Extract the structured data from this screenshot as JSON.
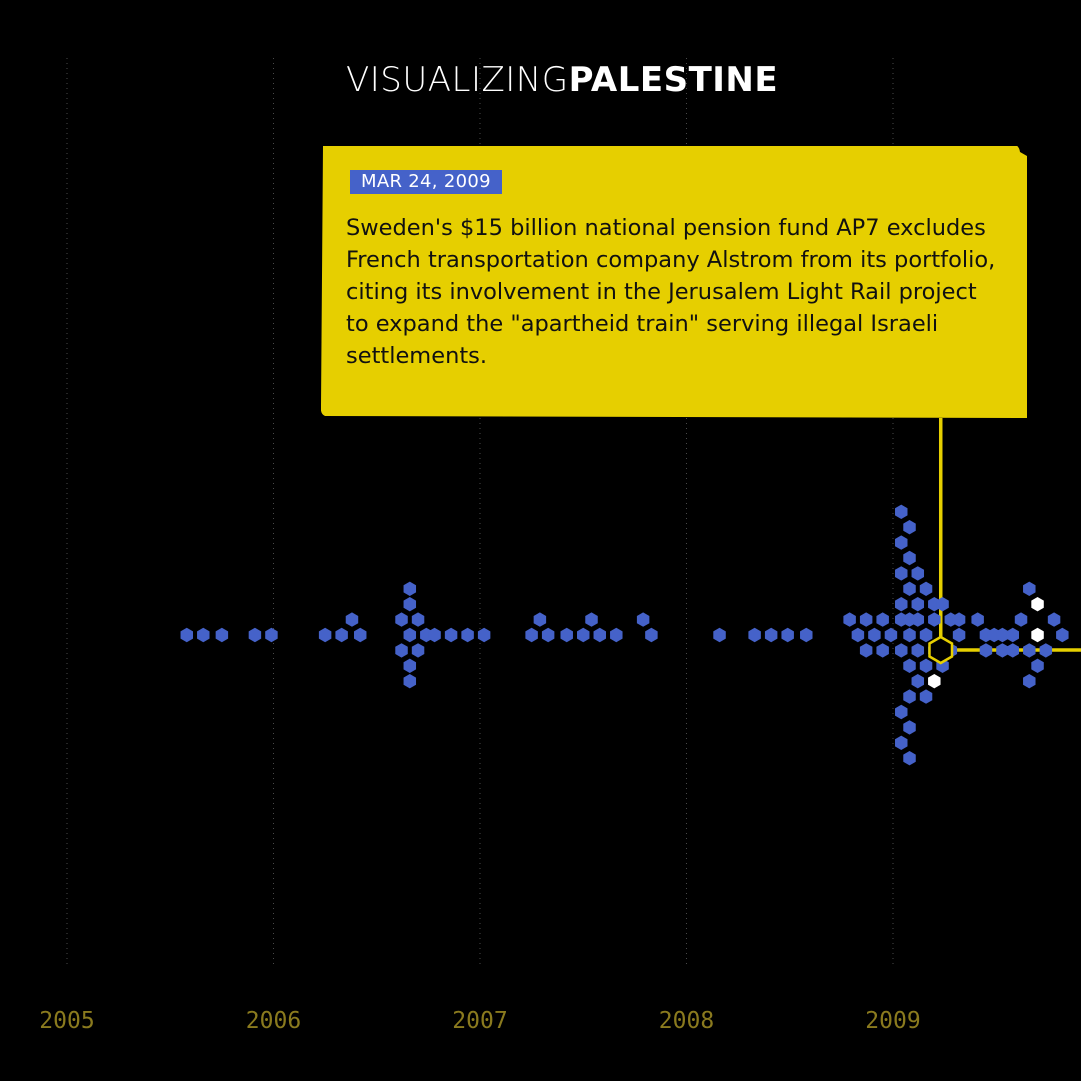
{
  "brand": {
    "part1": "VISUALIZING",
    "part2": "PALESTINE"
  },
  "callout": {
    "date": "MAR 24, 2009",
    "text": "Sweden's $15 billion national pension fund AP7 excludes French transportation company Alstrom from its portfolio, citing its involvement in the Jerusalem Light Rail project to expand the \"apartheid train\" serving illegal Israeli settlements."
  },
  "colors": {
    "background": "#000000",
    "dot": "#4562c9",
    "highlight": "#ffffff",
    "callout": "#e6cf00",
    "axis_label": "#8a7a1e"
  },
  "chart_data": {
    "type": "scatter",
    "xlabel": "",
    "ylabel": "",
    "x_ticks": [
      "2005",
      "2006",
      "2007",
      "2008",
      "2009"
    ],
    "grid": "vertical dotted lines at each year",
    "selected_event": {
      "date": "2009-03-24"
    },
    "markers": [
      {
        "x": 2005.58,
        "stack": 0
      },
      {
        "x": 2005.66,
        "stack": 0
      },
      {
        "x": 2005.75,
        "stack": 0
      },
      {
        "x": 2005.91,
        "stack": 0
      },
      {
        "x": 2005.99,
        "stack": 0
      },
      {
        "x": 2006.25,
        "stack": 0
      },
      {
        "x": 2006.33,
        "stack": 0
      },
      {
        "x": 2006.38,
        "stack": -1
      },
      {
        "x": 2006.42,
        "stack": 0
      },
      {
        "x": 2006.62,
        "stack": -1
      },
      {
        "x": 2006.62,
        "stack": 1
      },
      {
        "x": 2006.66,
        "stack": -3
      },
      {
        "x": 2006.66,
        "stack": -2
      },
      {
        "x": 2006.66,
        "stack": 0
      },
      {
        "x": 2006.66,
        "stack": 2
      },
      {
        "x": 2006.66,
        "stack": 3
      },
      {
        "x": 2006.7,
        "stack": -1
      },
      {
        "x": 2006.7,
        "stack": 1
      },
      {
        "x": 2006.74,
        "stack": 0
      },
      {
        "x": 2006.78,
        "stack": 0
      },
      {
        "x": 2006.86,
        "stack": 0
      },
      {
        "x": 2006.94,
        "stack": 0
      },
      {
        "x": 2007.02,
        "stack": 0
      },
      {
        "x": 2007.25,
        "stack": 0
      },
      {
        "x": 2007.29,
        "stack": -1
      },
      {
        "x": 2007.33,
        "stack": 0
      },
      {
        "x": 2007.42,
        "stack": 0
      },
      {
        "x": 2007.5,
        "stack": 0
      },
      {
        "x": 2007.54,
        "stack": -1
      },
      {
        "x": 2007.58,
        "stack": 0
      },
      {
        "x": 2007.66,
        "stack": 0
      },
      {
        "x": 2007.79,
        "stack": -1
      },
      {
        "x": 2007.83,
        "stack": 0
      },
      {
        "x": 2008.16,
        "stack": 0
      },
      {
        "x": 2008.33,
        "stack": 0
      },
      {
        "x": 2008.41,
        "stack": 0
      },
      {
        "x": 2008.49,
        "stack": 0
      },
      {
        "x": 2008.58,
        "stack": 0
      },
      {
        "x": 2008.79,
        "stack": -1
      },
      {
        "x": 2008.83,
        "stack": 0
      },
      {
        "x": 2008.87,
        "stack": -1
      },
      {
        "x": 2008.87,
        "stack": 1
      },
      {
        "x": 2008.91,
        "stack": 0
      },
      {
        "x": 2008.95,
        "stack": -1
      },
      {
        "x": 2008.95,
        "stack": 1
      },
      {
        "x": 2008.99,
        "stack": 0
      },
      {
        "x": 2009.04,
        "stack": -1
      },
      {
        "x": 2009.04,
        "stack": 1
      },
      {
        "x": 2009.04,
        "stack": -8
      },
      {
        "x": 2009.08,
        "stack": -7
      },
      {
        "x": 2009.04,
        "stack": -6
      },
      {
        "x": 2009.08,
        "stack": -5
      },
      {
        "x": 2009.04,
        "stack": -4
      },
      {
        "x": 2009.12,
        "stack": -4
      },
      {
        "x": 2009.08,
        "stack": -3
      },
      {
        "x": 2009.16,
        "stack": -3
      },
      {
        "x": 2009.04,
        "stack": -2
      },
      {
        "x": 2009.12,
        "stack": -2
      },
      {
        "x": 2009.2,
        "stack": -2
      },
      {
        "x": 2009.08,
        "stack": 0
      },
      {
        "x": 2009.16,
        "stack": 0
      },
      {
        "x": 2009.08,
        "stack": -1
      },
      {
        "x": 2009.12,
        "stack": -1
      },
      {
        "x": 2009.08,
        "stack": 2
      },
      {
        "x": 2009.12,
        "stack": 3
      },
      {
        "x": 2009.08,
        "stack": 4
      },
      {
        "x": 2009.04,
        "stack": 5
      },
      {
        "x": 2009.08,
        "stack": 6
      },
      {
        "x": 2009.04,
        "stack": 7
      },
      {
        "x": 2009.08,
        "stack": 8
      },
      {
        "x": 2009.16,
        "stack": 2
      },
      {
        "x": 2009.12,
        "stack": 1
      },
      {
        "x": 2009.16,
        "stack": 4
      },
      {
        "x": 2009.2,
        "stack": -1
      },
      {
        "x": 2009.2,
        "stack": 1
      },
      {
        "x": 2009.24,
        "stack": -2
      },
      {
        "x": 2009.24,
        "stack": 2
      },
      {
        "x": 2009.28,
        "stack": -1
      },
      {
        "x": 2009.28,
        "stack": 1
      },
      {
        "x": 2009.32,
        "stack": 0
      },
      {
        "x": 2009.32,
        "stack": -1
      },
      {
        "x": 2009.2,
        "stack": 3,
        "highlight": true
      },
      {
        "x": 2009.41,
        "stack": -1
      },
      {
        "x": 2009.45,
        "stack": 0
      },
      {
        "x": 2009.45,
        "stack": 1
      },
      {
        "x": 2009.49,
        "stack": 0
      },
      {
        "x": 2009.53,
        "stack": 0
      },
      {
        "x": 2009.53,
        "stack": 1
      },
      {
        "x": 2009.58,
        "stack": 0
      },
      {
        "x": 2009.58,
        "stack": 1
      },
      {
        "x": 2009.62,
        "stack": -1
      },
      {
        "x": 2009.66,
        "stack": -3
      },
      {
        "x": 2009.66,
        "stack": 1
      },
      {
        "x": 2009.66,
        "stack": 3
      },
      {
        "x": 2009.7,
        "stack": -2,
        "highlight": true
      },
      {
        "x": 2009.7,
        "stack": 0,
        "highlight": true
      },
      {
        "x": 2009.7,
        "stack": 2
      },
      {
        "x": 2009.74,
        "stack": 1
      },
      {
        "x": 2009.78,
        "stack": -1
      },
      {
        "x": 2009.82,
        "stack": 0
      }
    ]
  }
}
